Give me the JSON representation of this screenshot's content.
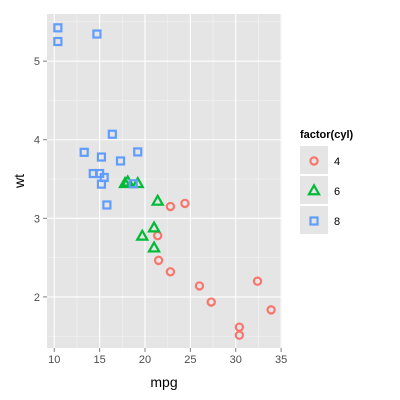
{
  "chart_data": {
    "type": "scatter",
    "xlabel": "mpg",
    "ylabel": "wt",
    "xlim": [
      9.2,
      35.1
    ],
    "ylim": [
      1.35,
      5.6
    ],
    "x_ticks": [
      10,
      15,
      20,
      25,
      30,
      35
    ],
    "y_ticks": [
      2,
      3,
      4,
      5
    ],
    "grid": true,
    "legend": {
      "title": "factor(cyl)",
      "placement": "right",
      "entries": [
        "4",
        "6",
        "8"
      ]
    },
    "series": [
      {
        "name": "4",
        "shape": "circle",
        "color": "#F8766D",
        "points": [
          {
            "x": 22.8,
            "y": 2.32
          },
          {
            "x": 24.4,
            "y": 3.19
          },
          {
            "x": 22.8,
            "y": 3.15
          },
          {
            "x": 32.4,
            "y": 2.2
          },
          {
            "x": 30.4,
            "y": 1.615
          },
          {
            "x": 33.9,
            "y": 1.835
          },
          {
            "x": 21.5,
            "y": 2.465
          },
          {
            "x": 27.3,
            "y": 1.935
          },
          {
            "x": 26.0,
            "y": 2.14
          },
          {
            "x": 30.4,
            "y": 1.513
          },
          {
            "x": 21.4,
            "y": 2.78
          }
        ]
      },
      {
        "name": "6",
        "shape": "triangle",
        "color": "#00BA38",
        "points": [
          {
            "x": 21.0,
            "y": 2.62
          },
          {
            "x": 21.0,
            "y": 2.875
          },
          {
            "x": 21.4,
            "y": 3.215
          },
          {
            "x": 18.1,
            "y": 3.46
          },
          {
            "x": 19.2,
            "y": 3.44
          },
          {
            "x": 17.8,
            "y": 3.44
          },
          {
            "x": 19.7,
            "y": 2.77
          }
        ]
      },
      {
        "name": "8",
        "shape": "square",
        "color": "#619CFF",
        "points": [
          {
            "x": 18.7,
            "y": 3.44
          },
          {
            "x": 14.3,
            "y": 3.57
          },
          {
            "x": 16.4,
            "y": 4.07
          },
          {
            "x": 17.3,
            "y": 3.73
          },
          {
            "x": 15.2,
            "y": 3.78
          },
          {
            "x": 10.4,
            "y": 5.25
          },
          {
            "x": 10.4,
            "y": 5.424
          },
          {
            "x": 14.7,
            "y": 5.345
          },
          {
            "x": 15.5,
            "y": 3.52
          },
          {
            "x": 15.2,
            "y": 3.435
          },
          {
            "x": 13.3,
            "y": 3.84
          },
          {
            "x": 19.2,
            "y": 3.845
          },
          {
            "x": 15.8,
            "y": 3.17
          },
          {
            "x": 15.0,
            "y": 3.57
          }
        ]
      }
    ]
  }
}
